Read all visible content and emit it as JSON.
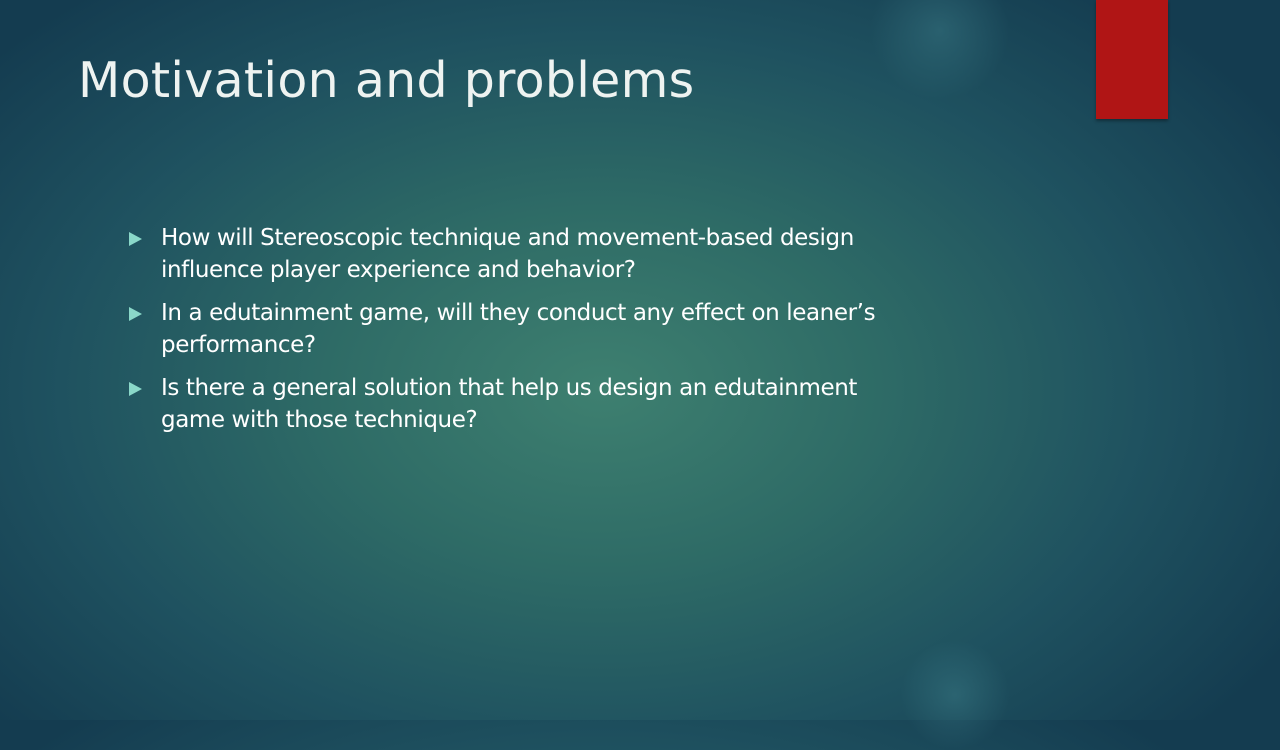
{
  "slide": {
    "title": "Motivation and problems",
    "bullets": [
      "How will  Stereoscopic technique and movement-based design\ninfluence player experience and behavior?",
      "In a edutainment game, will they conduct any effect on leaner’s\nperformance?",
      "Is there a general  solution that help us design an edutainment\ngame with those technique?"
    ]
  },
  "colors": {
    "accent_bar": "#b01515",
    "bullet_arrow": "#8ad8c9",
    "text": "#ffffff"
  },
  "icons": {
    "bullet": "triangle-right"
  }
}
